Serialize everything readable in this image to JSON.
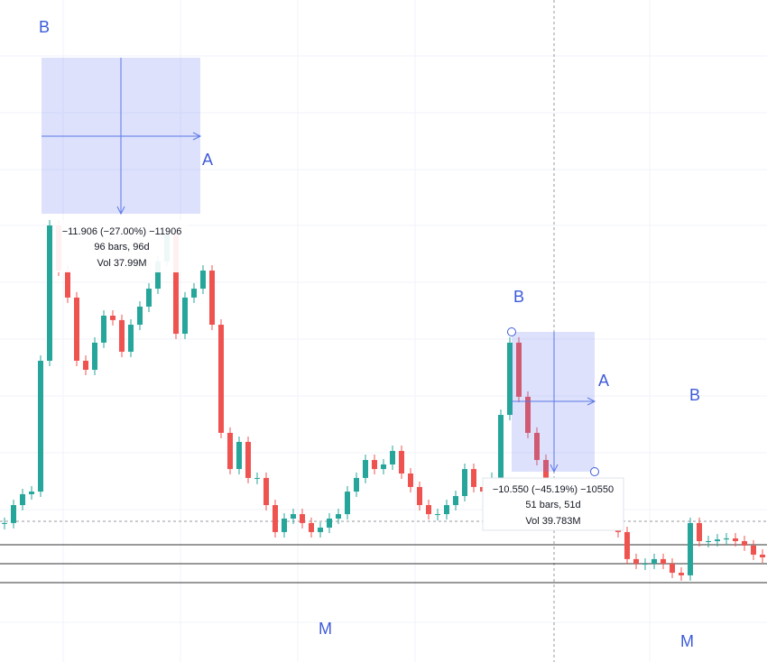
{
  "chart_data": {
    "type": "candlestick",
    "closes": [
      8.6,
      9.97,
      10.8,
      11.0,
      20.98,
      31.3,
      27.86,
      25.8,
      20.98,
      20.29,
      22.36,
      24.42,
      24.08,
      21.67,
      23.73,
      25.11,
      26.48,
      28.55,
      30.61,
      23.04,
      25.8,
      26.48,
      27.86,
      23.73,
      15.48,
      12.72,
      14.79,
      12.04,
      12.04,
      9.97,
      7.91,
      8.94,
      9.28,
      8.6,
      7.91,
      8.25,
      8.94,
      9.28,
      11.0,
      12.04,
      13.41,
      12.72,
      13.07,
      14.1,
      12.38,
      11.35,
      9.97,
      9.28,
      9.28,
      9.97,
      10.66,
      12.72,
      11.35,
      11.0,
      12.04,
      16.85,
      22.36,
      18.23,
      15.48,
      13.41,
      11.35,
      10.32,
      9.97,
      9.63,
      9.28,
      9.28,
      9.15,
      8.94,
      7.91,
      5.85,
      5.5,
      5.5,
      5.85,
      5.5,
      4.81,
      4.61,
      8.6,
      7.22,
      7.22,
      7.35,
      7.43,
      7.22,
      6.88,
      6.19,
      5.98
    ],
    "ylim": [
      -2,
      48.5
    ],
    "up_color": "#26a69a",
    "down_color": "#ef5350"
  },
  "annotations": {
    "labels": [
      "B",
      "A",
      "B",
      "A",
      "B",
      "M",
      "M"
    ],
    "measure_1": [
      "−11.906 (−27.00%) −11906",
      "96 bars, 96d",
      "Vol 37.99M"
    ],
    "measure_2": [
      "−10.550 (−45.19%) −10550",
      "51 bars, 51d",
      "Vol 39.783M"
    ]
  }
}
